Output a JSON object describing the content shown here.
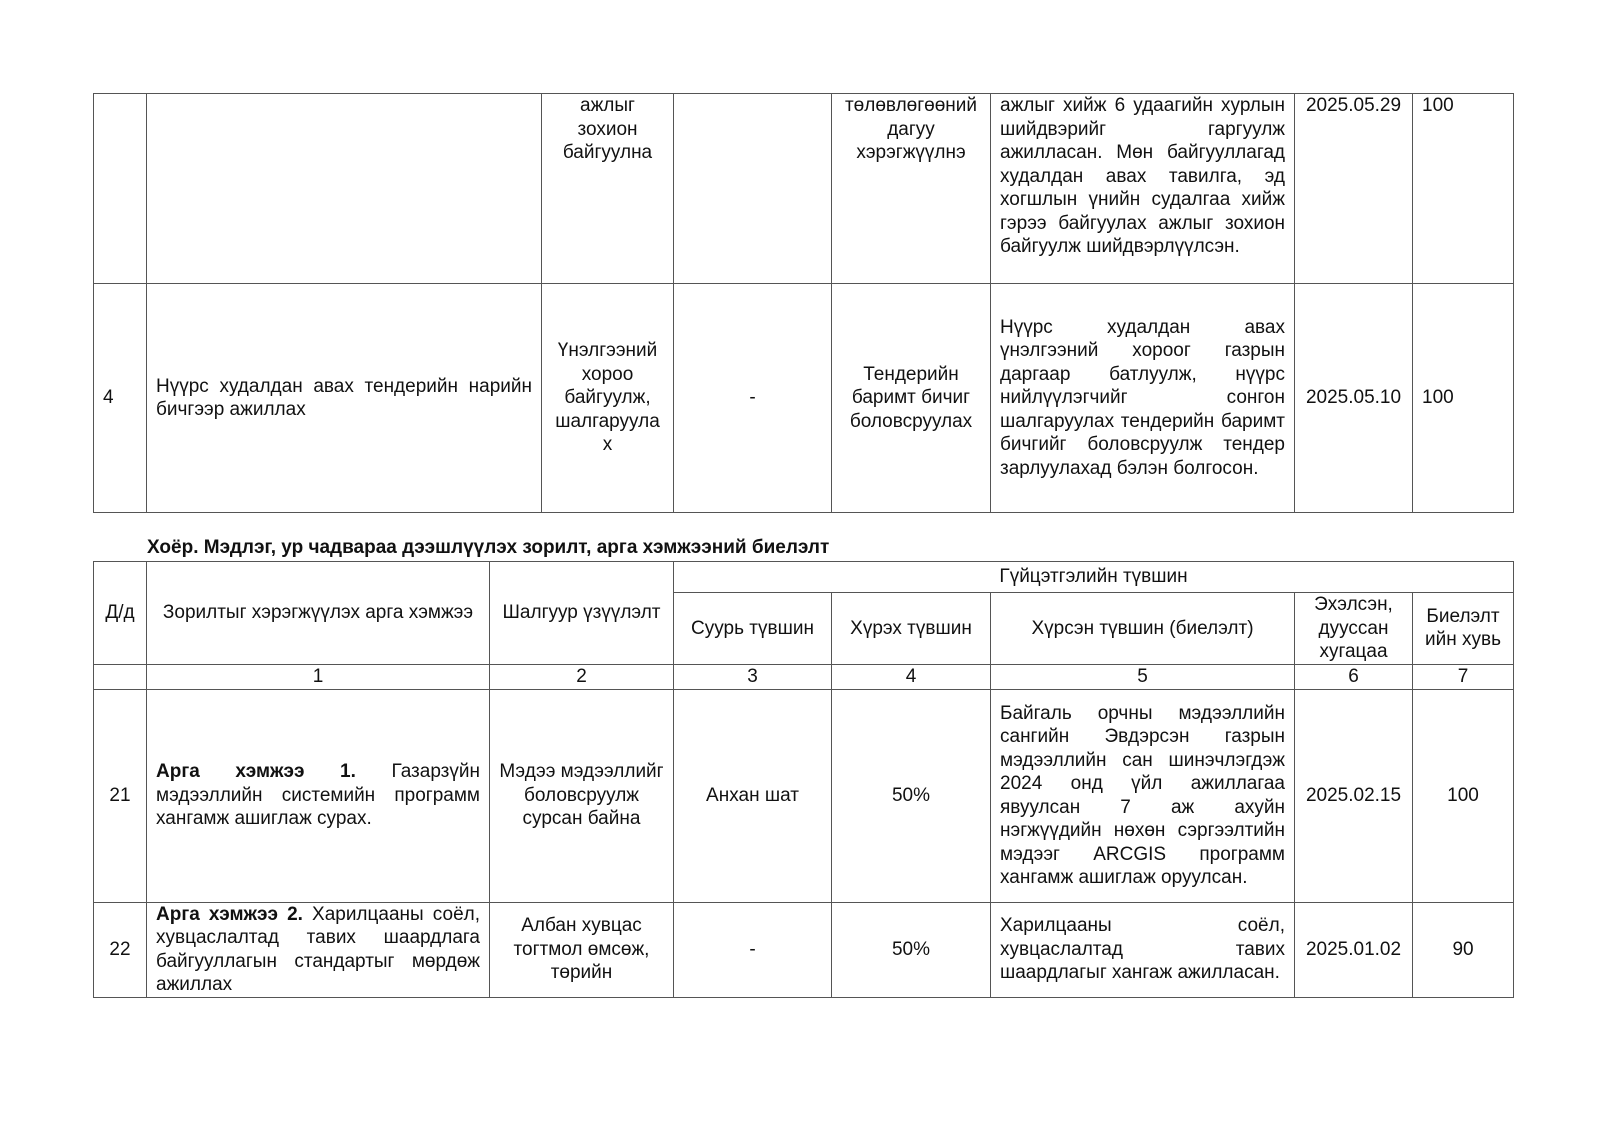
{
  "table1": {
    "rows": [
      {
        "num": "",
        "action": "",
        "criteria": "ажлыг зохион байгуулна",
        "base": "",
        "target": "төлөвлөгөөний дагуу хэрэгжүүлнэ",
        "result": "ажлыг хийж 6 удаагийн хурлын шийдвэрийг гаргуулж ажилласан. Мөн байгууллагад худалдан авах тавилга, эд хогшлын үнийн судалгаа хийж гэрээ байгуулах ажлыг зохион байгуулж шийдвэрлүүлсэн.",
        "date": "2025.05.29",
        "percent": "100"
      },
      {
        "num": "4",
        "action": "Нүүрс худалдан авах тендерийн нарийн бичгээр ажиллах",
        "criteria": "Үнэлгээний хороо байгуулж, шалгаруулах",
        "base": "-",
        "target": "Тендерийн баримт бичиг боловсруулах",
        "result": "Нүүрс худалдан авах үнэлгээний хороог газрын даргаар батлуулж, нүүрс нийлүүлэгчийг сонгон шалгаруулах тендерийн баримт бичгийг боловсруулж тендер зарлуулахад бэлэн болгосон.",
        "date": "2025.05.10",
        "percent": "100"
      }
    ]
  },
  "section_heading": "Хоёр. Мэдлэг, ур чадвараа дээшлүүлэх зорилт, арга хэмжээний биелэлт",
  "table2": {
    "headers": {
      "num": "Д/д",
      "action": "Зорилтыг хэрэгжүүлэх арга хэмжээ",
      "criteria": "Шалгуур үзүүлэлт",
      "level_group": "Гүйцэтгэлийн түвшин",
      "base": "Суурь түвшин",
      "target": "Хүрэх түвшин",
      "result": "Хүрсэн түвшин (биелэлт)",
      "date": "Эхэлсэн, дууссан хугацаа",
      "percent": "Биелэлт ийн хувь"
    },
    "col_numbers": [
      "1",
      "2",
      "3",
      "4",
      "5",
      "6",
      "7"
    ],
    "rows": [
      {
        "num": "21",
        "action_bold": "Арга хэмжээ 1.",
        "action": " Газарзүйн мэдээллийн системийн программ хангамж ашиглаж сурах.",
        "criteria": "Мэдээ мэдээллийг боловсруулж сурсан байна",
        "base": "Анхан шат",
        "target": "50%",
        "result": "Байгаль орчны мэдээллийн сангийн Эвдэрсэн газрын мэдээллийн сан шинэчлэгдэж 2024 онд үйл ажиллагаа явуулсан 7 аж ахуйн нэгжүүдийн нөхөн сэргээлтийн мэдээг ARCGIS программ хангамж ашиглаж оруулсан.",
        "date": "2025.02.15",
        "percent": "100"
      },
      {
        "num": "22",
        "action_bold": "Арга хэмжээ 2.",
        "action": " Харилцааны соёл, хувцаслалтад тавих шаардлага байгууллагын стандартыг мөрдөж ажиллах",
        "criteria": "Албан хувцас тогтмол өмсөж, төрийн",
        "base": "-",
        "target": "50%",
        "result": "Харилцааны соёл, хувцаслалтад тавих шаардлагыг хангаж ажилласан.",
        "date": "2025.01.02",
        "percent": "90"
      }
    ]
  }
}
